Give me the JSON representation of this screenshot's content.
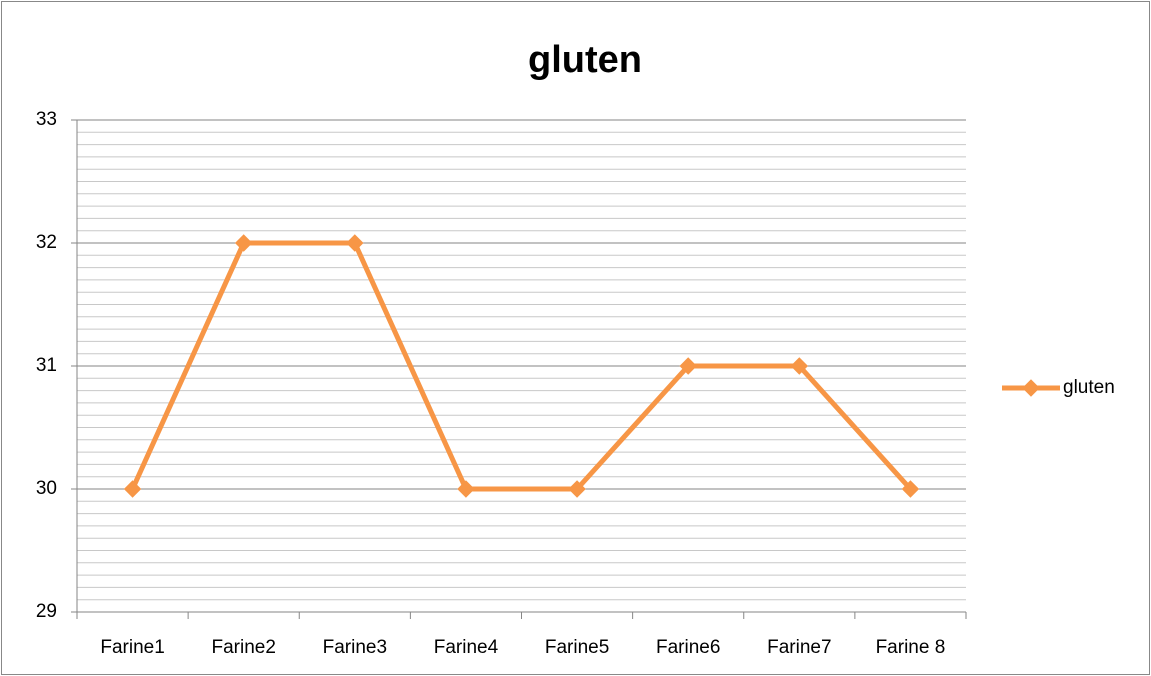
{
  "chart_data": {
    "type": "line",
    "title": "gluten",
    "categories": [
      "Farine1",
      "Farine2",
      "Farine3",
      "Farine4",
      "Farine5",
      "Farine6",
      "Farine7",
      "Farine 8"
    ],
    "series": [
      {
        "name": "gluten",
        "color": "#f79646",
        "values": [
          30,
          32,
          32,
          30,
          30,
          31,
          31,
          30
        ]
      }
    ],
    "ylim": [
      29,
      33
    ],
    "yticks": [
      29,
      30,
      31,
      32,
      33
    ],
    "grid": true,
    "minor_grid": true,
    "legend": "right"
  }
}
